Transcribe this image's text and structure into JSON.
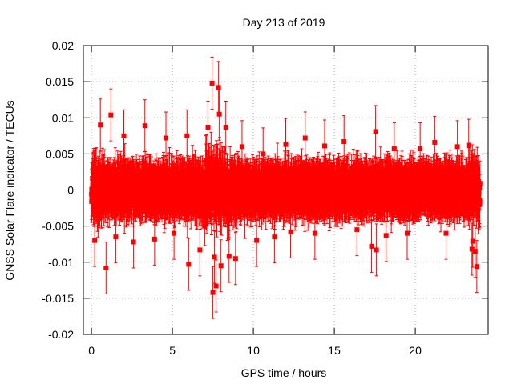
{
  "chart_data": {
    "type": "scatter",
    "title": "Day 213 of 2019",
    "xlabel": "GPS time / hours",
    "ylabel": "GNSS Solar Flare indicator / TECUs",
    "xlim": [
      -0.5,
      24.5
    ],
    "ylim": [
      -0.02,
      0.02
    ],
    "x_ticks": [
      0,
      5,
      10,
      15,
      20
    ],
    "x_tick_labels": [
      "0",
      "5",
      "10",
      "15",
      "20"
    ],
    "y_ticks": [
      -0.02,
      -0.015,
      -0.01,
      -0.005,
      0,
      0.005,
      0.01,
      0.015,
      0.02
    ],
    "y_tick_labels": [
      "-0.02",
      "-0.015",
      "-0.01",
      "-0.005",
      "0",
      "0.005",
      "0.01",
      "0.015",
      "0.02"
    ],
    "grid": true,
    "legend": "none",
    "series_color": "#ff0000",
    "series": [
      {
        "name": "Solar flare indicator",
        "x_range": [
          0,
          24
        ],
        "sample_interval_hours": 0.0083,
        "typical_error": 0.003,
        "envelope_note": "Dense noisy series; typical spread about ±0.003 TECU with errorbars ~±0.003",
        "outliers": [
          {
            "x": 0.2,
            "y": -0.007
          },
          {
            "x": 0.55,
            "y": 0.009
          },
          {
            "x": 0.9,
            "y": -0.0108
          },
          {
            "x": 1.2,
            "y": 0.0104
          },
          {
            "x": 1.5,
            "y": -0.0065
          },
          {
            "x": 2.0,
            "y": 0.0075
          },
          {
            "x": 2.6,
            "y": -0.0072
          },
          {
            "x": 3.3,
            "y": 0.0089
          },
          {
            "x": 3.9,
            "y": -0.0068
          },
          {
            "x": 4.6,
            "y": 0.0072
          },
          {
            "x": 5.1,
            "y": -0.006
          },
          {
            "x": 5.9,
            "y": 0.0075
          },
          {
            "x": 6.0,
            "y": -0.0103
          },
          {
            "x": 6.7,
            "y": -0.0083
          },
          {
            "x": 7.2,
            "y": 0.0087
          },
          {
            "x": 7.45,
            "y": 0.0148
          },
          {
            "x": 7.5,
            "y": -0.0142
          },
          {
            "x": 7.6,
            "y": -0.0093
          },
          {
            "x": 7.7,
            "y": -0.0133
          },
          {
            "x": 7.85,
            "y": 0.0142
          },
          {
            "x": 7.9,
            "y": 0.0105
          },
          {
            "x": 8.0,
            "y": -0.0105
          },
          {
            "x": 8.3,
            "y": 0.0087
          },
          {
            "x": 8.5,
            "y": -0.0092
          },
          {
            "x": 8.9,
            "y": -0.0095
          },
          {
            "x": 9.3,
            "y": 0.006
          },
          {
            "x": 10.2,
            "y": -0.007
          },
          {
            "x": 10.6,
            "y": 0.005
          },
          {
            "x": 11.3,
            "y": -0.0065
          },
          {
            "x": 12.0,
            "y": 0.0063
          },
          {
            "x": 12.3,
            "y": -0.0058
          },
          {
            "x": 13.2,
            "y": 0.0072
          },
          {
            "x": 13.8,
            "y": -0.006
          },
          {
            "x": 14.4,
            "y": 0.0061
          },
          {
            "x": 15.6,
            "y": 0.0067
          },
          {
            "x": 16.4,
            "y": -0.0055
          },
          {
            "x": 17.3,
            "y": -0.0078
          },
          {
            "x": 17.55,
            "y": 0.0081
          },
          {
            "x": 17.6,
            "y": -0.0083
          },
          {
            "x": 18.2,
            "y": -0.0063
          },
          {
            "x": 18.7,
            "y": 0.0057
          },
          {
            "x": 19.5,
            "y": -0.006
          },
          {
            "x": 20.3,
            "y": 0.0057
          },
          {
            "x": 21.2,
            "y": 0.0066
          },
          {
            "x": 21.9,
            "y": -0.006
          },
          {
            "x": 22.6,
            "y": 0.006
          },
          {
            "x": 23.3,
            "y": 0.0062
          },
          {
            "x": 23.5,
            "y": -0.0082
          },
          {
            "x": 23.55,
            "y": -0.0071
          },
          {
            "x": 23.7,
            "y": -0.0085
          },
          {
            "x": 23.8,
            "y": -0.0106
          }
        ]
      }
    ]
  }
}
